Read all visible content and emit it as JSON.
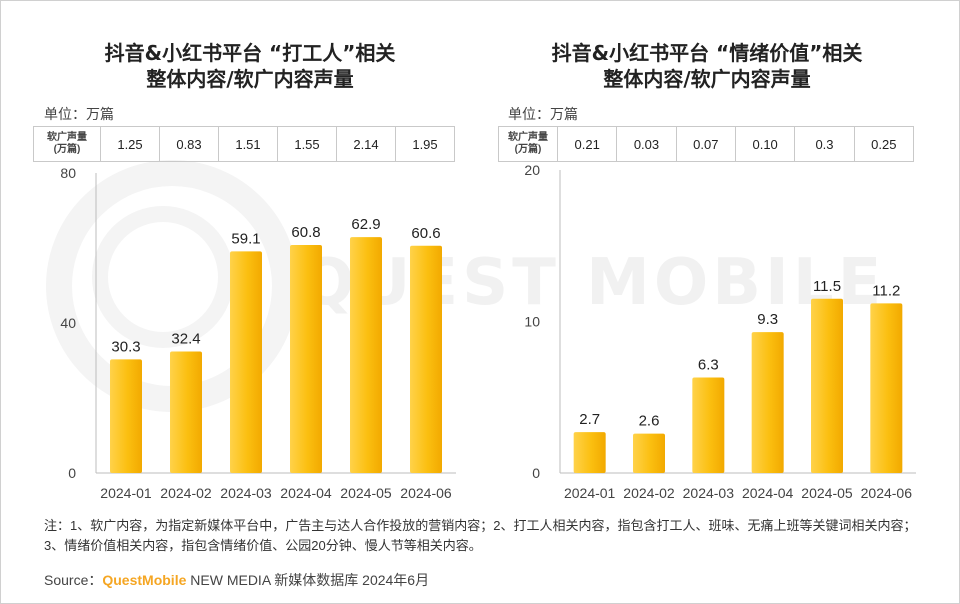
{
  "note": "注：1、软广内容，为指定新媒体平台中，广告主与达人合作投放的营销内容；2、打工人相关内容，指包含打工人、班味、无痛上班等关键词相关内容；3、情绪价值相关内容，指包含情绪价值、公园20分钟、慢人节等相关内容。",
  "source": {
    "prefix": "Source：",
    "brand": "QuestMobile",
    "suffix": " NEW MEDIA 新媒体数据库 2024年6月"
  },
  "watermark": "QUEST MOBILE",
  "bar_color": "#fbbf10",
  "chart_data": [
    {
      "type": "bar",
      "title_line1": "抖音&小红书平台 “打工人”相关",
      "title_line2": "整体内容/软广内容声量",
      "unit_label": "单位：万篇",
      "table_header": "软广声量（万篇）",
      "table_header_line1": "软广声量",
      "table_header_line2": "(万篇)",
      "table_values": [
        "1.25",
        "0.83",
        "1.51",
        "1.55",
        "2.14",
        "1.95"
      ],
      "categories": [
        "2024-01",
        "2024-02",
        "2024-03",
        "2024-04",
        "2024-05",
        "2024-06"
      ],
      "values": [
        30.3,
        32.4,
        59.1,
        60.8,
        62.9,
        60.6
      ],
      "ylim": [
        0,
        80
      ],
      "yticks": [
        0,
        40,
        80
      ]
    },
    {
      "type": "bar",
      "title_line1": "抖音&小红书平台 “情绪价值”相关",
      "title_line2": "整体内容/软广内容声量",
      "unit_label": "单位：万篇",
      "table_header": "软广声量（万篇）",
      "table_header_line1": "软广声量",
      "table_header_line2": "(万篇)",
      "table_values": [
        "0.21",
        "0.03",
        "0.07",
        "0.10",
        "0.3",
        "0.25"
      ],
      "categories": [
        "2024-01",
        "2024-02",
        "2024-03",
        "2024-04",
        "2024-05",
        "2024-06"
      ],
      "values": [
        2.7,
        2.6,
        6.3,
        9.3,
        11.5,
        11.2
      ],
      "ylim": [
        0,
        20
      ],
      "yticks": [
        0,
        10,
        20
      ]
    }
  ]
}
